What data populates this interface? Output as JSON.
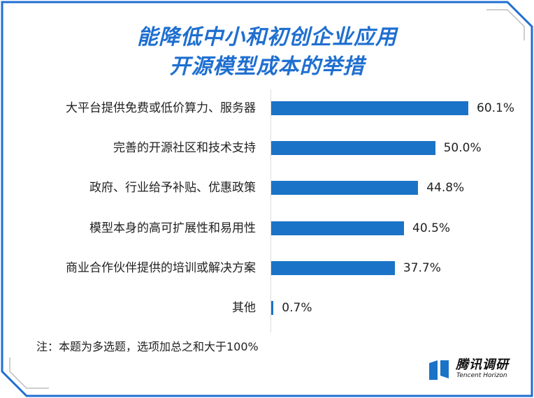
{
  "header": {
    "title_line1": "能降低中小和初创企业应用",
    "title_line2": "开源模型成本的举措"
  },
  "chart_data": {
    "type": "bar",
    "orientation": "horizontal",
    "title": "能降低中小和初创企业应用开源模型成本的举措",
    "categories": [
      "大平台提供免费或低价算力、服务器",
      "完善的开源社区和技术支持",
      "政府、行业给予补贴、优惠政策",
      "模型本身的高可扩展性和易用性",
      "商业合作伙伴提供的培训或解决方案",
      "其他"
    ],
    "values": [
      60.1,
      50.0,
      44.8,
      40.5,
      37.7,
      0.7
    ],
    "value_labels": [
      "60.1%",
      "50.0%",
      "44.8%",
      "40.5%",
      "37.7%",
      "0.7%"
    ],
    "unit": "%",
    "xlim": [
      0,
      65
    ],
    "grid": false,
    "bar_color": "#1a73c6"
  },
  "footnote": "注：本题为多选题，选项加总之和大于100%",
  "logo": {
    "name_cn": "腾讯调研",
    "name_en": "Tencent Horizon"
  },
  "colors": {
    "title": "#1f6fd0",
    "border": "#1f6fd0",
    "bar": "#1a73c6"
  }
}
